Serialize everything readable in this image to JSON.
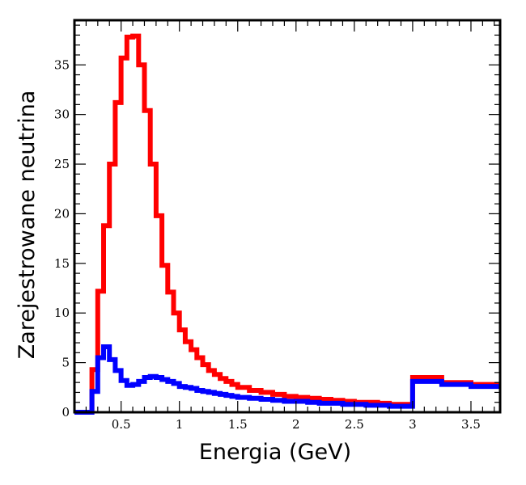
{
  "chart_data": {
    "type": "line",
    "title": "",
    "xlabel": "Energia (GeV)",
    "ylabel": "Zarejestrowane neutrina",
    "xlim": [
      0.1,
      3.75
    ],
    "ylim": [
      0,
      39.5
    ],
    "grid": false,
    "legend": "none",
    "x_major_ticks": [
      0.5,
      1,
      1.5,
      2,
      2.5,
      3,
      3.5
    ],
    "x_major_tick_labels": [
      "0.5",
      "1",
      "1.5",
      "2",
      "2.5",
      "3",
      "3.5"
    ],
    "x_minor_step": 0.1,
    "y_major_ticks": [
      0,
      5,
      10,
      15,
      20,
      25,
      30,
      35
    ],
    "y_major_tick_labels": [
      "0",
      "5",
      "10",
      "15",
      "20",
      "25",
      "30",
      "35"
    ],
    "y_minor_step": 1,
    "bin_edges": [
      0.1,
      0.15,
      0.2,
      0.25,
      0.3,
      0.35,
      0.4,
      0.45,
      0.5,
      0.55,
      0.6,
      0.65,
      0.7,
      0.75,
      0.8,
      0.85,
      0.9,
      0.95,
      1.0,
      1.05,
      1.1,
      1.15,
      1.2,
      1.25,
      1.3,
      1.35,
      1.4,
      1.45,
      1.5,
      1.6,
      1.7,
      1.8,
      1.9,
      2.0,
      2.1,
      2.2,
      2.3,
      2.4,
      2.5,
      2.6,
      2.7,
      2.8,
      3.0,
      3.25,
      3.5,
      3.75
    ],
    "series": [
      {
        "name": "red",
        "color": "#ff0000",
        "values": [
          0,
          0,
          0,
          4.3,
          12.2,
          18.8,
          25,
          31.2,
          35.7,
          37.8,
          37.9,
          35,
          30.4,
          25,
          19.8,
          14.8,
          12.1,
          10,
          8.3,
          7.1,
          6.3,
          5.5,
          4.8,
          4.2,
          3.8,
          3.4,
          3.1,
          2.8,
          2.5,
          2.2,
          2.0,
          1.8,
          1.6,
          1.5,
          1.4,
          1.3,
          1.2,
          1.1,
          1.0,
          1.0,
          0.9,
          0.8,
          3.5,
          3.0,
          2.8
        ]
      },
      {
        "name": "blue",
        "color": "#0000ff",
        "values": [
          0,
          0,
          0,
          2.1,
          5.5,
          6.6,
          5.3,
          4.2,
          3.2,
          2.7,
          2.8,
          3.1,
          3.5,
          3.6,
          3.5,
          3.3,
          3.1,
          2.9,
          2.6,
          2.5,
          2.4,
          2.2,
          2.1,
          2.0,
          1.9,
          1.8,
          1.7,
          1.6,
          1.5,
          1.4,
          1.3,
          1.2,
          1.1,
          1.1,
          1.0,
          0.9,
          0.9,
          0.8,
          0.8,
          0.7,
          0.7,
          0.6,
          3.1,
          2.8,
          2.6
        ]
      }
    ]
  }
}
